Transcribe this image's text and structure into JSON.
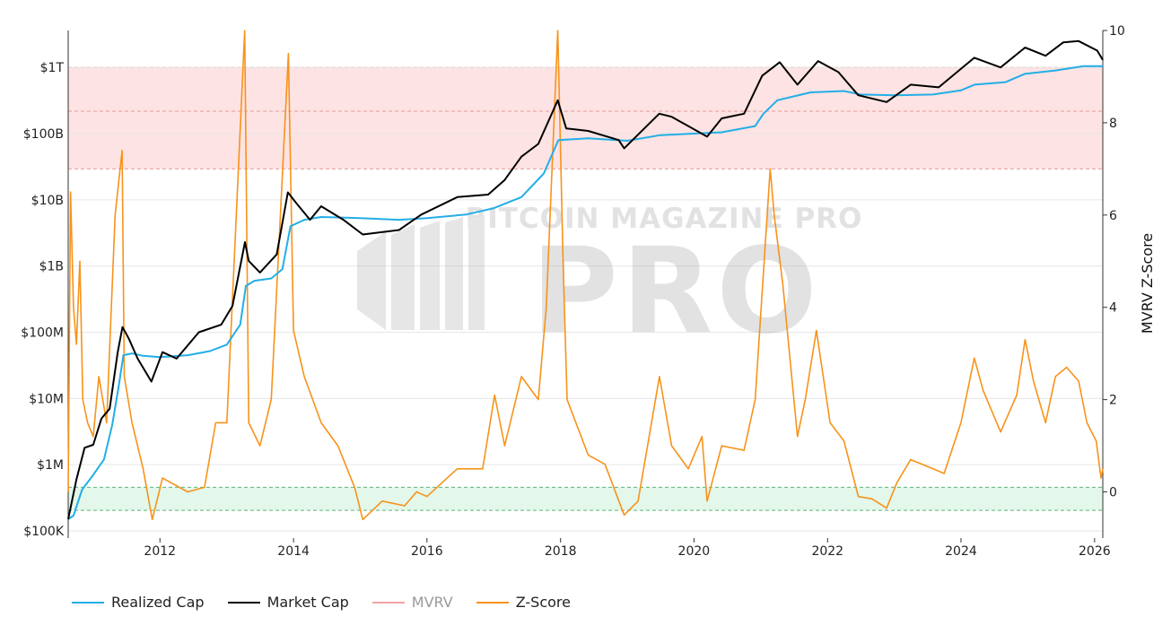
{
  "chart_data": {
    "type": "line",
    "title": "",
    "watermark": "BITCOIN MAGAZINE PRO",
    "x_ticks": [
      "2012",
      "2014",
      "2016",
      "2018",
      "2020",
      "2022",
      "2024",
      "2026"
    ],
    "x_range": [
      "2010-08-17",
      "2026-02-15"
    ],
    "y_left": {
      "scale": "log",
      "range": [
        100000,
        3000000000000
      ],
      "ticks": [
        {
          "value": 100000,
          "label": "$100K"
        },
        {
          "value": 1000000,
          "label": "$1M"
        },
        {
          "value": 10000000,
          "label": "$10M"
        },
        {
          "value": 100000000,
          "label": "$100M"
        },
        {
          "value": 1000000000,
          "label": "$1B"
        },
        {
          "value": 10000000000,
          "label": "$10B"
        },
        {
          "value": 100000000000,
          "label": "$100B"
        },
        {
          "value": 1000000000000,
          "label": "$1T"
        }
      ]
    },
    "y_right": {
      "label": "MVRV Z-Score",
      "range": [
        -1,
        10
      ],
      "ticks": [
        "0",
        "2",
        "4",
        "6",
        "8",
        "10"
      ]
    },
    "bands": [
      {
        "name": "high-zone",
        "from": 7,
        "to": 9.2,
        "color": "#fde3e3",
        "line": "#e79a9a"
      },
      {
        "name": "low-zone",
        "from": -0.4,
        "to": 0.1,
        "color": "#e3f7ea",
        "line": "#5fb37a"
      }
    ],
    "band_midline": 8.25,
    "series": [
      {
        "name": "Realized Cap",
        "axis": "left",
        "color": "#23aee6",
        "points": [
          [
            "2010-08-17",
            150000
          ],
          [
            "2010-09-15",
            170000
          ],
          [
            "2010-11-01",
            420000
          ],
          [
            "2011-01-01",
            700000
          ],
          [
            "2011-03-01",
            1200000
          ],
          [
            "2011-04-15",
            4000000
          ],
          [
            "2011-05-20",
            15000000
          ],
          [
            "2011-06-15",
            45000000
          ],
          [
            "2011-08-01",
            48000000
          ],
          [
            "2011-10-01",
            44000000
          ],
          [
            "2012-01-01",
            42000000
          ],
          [
            "2012-06-01",
            45000000
          ],
          [
            "2012-10-01",
            52000000
          ],
          [
            "2013-01-01",
            65000000
          ],
          [
            "2013-03-15",
            130000000
          ],
          [
            "2013-04-15",
            500000000
          ],
          [
            "2013-06-01",
            600000000
          ],
          [
            "2013-09-01",
            650000000
          ],
          [
            "2013-11-01",
            900000000
          ],
          [
            "2013-12-15",
            4000000000
          ],
          [
            "2014-03-01",
            5000000000
          ],
          [
            "2014-06-01",
            5500000000
          ],
          [
            "2015-01-01",
            5300000000
          ],
          [
            "2015-08-01",
            5000000000
          ],
          [
            "2016-01-01",
            5300000000
          ],
          [
            "2016-08-01",
            6000000000
          ],
          [
            "2017-01-01",
            7500000000
          ],
          [
            "2017-06-01",
            11000000000
          ],
          [
            "2017-10-01",
            25000000000
          ],
          [
            "2017-12-20",
            80000000000
          ],
          [
            "2018-06-01",
            85000000000
          ],
          [
            "2019-01-01",
            78000000000
          ],
          [
            "2019-07-01",
            95000000000
          ],
          [
            "2020-01-01",
            100000000000
          ],
          [
            "2020-06-01",
            105000000000
          ],
          [
            "2020-12-01",
            130000000000
          ],
          [
            "2021-01-15",
            200000000000
          ],
          [
            "2021-04-01",
            320000000000
          ],
          [
            "2021-10-01",
            420000000000
          ],
          [
            "2022-04-01",
            440000000000
          ],
          [
            "2022-07-01",
            390000000000
          ],
          [
            "2023-01-01",
            380000000000
          ],
          [
            "2023-08-01",
            390000000000
          ],
          [
            "2024-01-01",
            450000000000
          ],
          [
            "2024-03-15",
            550000000000
          ],
          [
            "2024-09-01",
            600000000000
          ],
          [
            "2024-12-15",
            800000000000
          ],
          [
            "2025-06-01",
            900000000000
          ],
          [
            "2025-11-01",
            1050000000000
          ],
          [
            "2026-02-15",
            1050000000000
          ]
        ]
      },
      {
        "name": "Market Cap",
        "axis": "left",
        "color": "#000000",
        "points": [
          [
            "2010-08-17",
            150000
          ],
          [
            "2010-10-01",
            600000
          ],
          [
            "2010-11-15",
            1800000
          ],
          [
            "2011-01-01",
            2000000
          ],
          [
            "2011-02-15",
            5000000
          ],
          [
            "2011-04-01",
            7000000
          ],
          [
            "2011-05-15",
            50000000
          ],
          [
            "2011-06-10",
            120000000
          ],
          [
            "2011-07-15",
            80000000
          ],
          [
            "2011-09-01",
            40000000
          ],
          [
            "2011-11-15",
            18000000
          ],
          [
            "2012-01-15",
            50000000
          ],
          [
            "2012-04-01",
            40000000
          ],
          [
            "2012-08-01",
            100000000
          ],
          [
            "2012-12-01",
            130000000
          ],
          [
            "2013-02-01",
            250000000
          ],
          [
            "2013-04-10",
            2300000000
          ],
          [
            "2013-05-01",
            1200000000
          ],
          [
            "2013-07-01",
            800000000
          ],
          [
            "2013-10-01",
            1500000000
          ],
          [
            "2013-12-01",
            13000000000
          ],
          [
            "2014-01-15",
            9000000000
          ],
          [
            "2014-04-01",
            5000000000
          ],
          [
            "2014-06-01",
            8000000000
          ],
          [
            "2014-10-01",
            5000000000
          ],
          [
            "2015-01-15",
            3000000000
          ],
          [
            "2015-08-01",
            3500000000
          ],
          [
            "2015-12-01",
            6000000000
          ],
          [
            "2016-06-15",
            11000000000
          ],
          [
            "2016-12-01",
            12000000000
          ],
          [
            "2017-03-01",
            20000000000
          ],
          [
            "2017-06-01",
            45000000000
          ],
          [
            "2017-09-01",
            70000000000
          ],
          [
            "2017-12-17",
            320000000000
          ],
          [
            "2018-02-01",
            120000000000
          ],
          [
            "2018-06-01",
            110000000000
          ],
          [
            "2018-11-15",
            80000000000
          ],
          [
            "2018-12-15",
            60000000000
          ],
          [
            "2019-06-25",
            200000000000
          ],
          [
            "2019-09-01",
            180000000000
          ],
          [
            "2020-03-13",
            90000000000
          ],
          [
            "2020-06-01",
            170000000000
          ],
          [
            "2020-10-01",
            200000000000
          ],
          [
            "2021-01-08",
            750000000000
          ],
          [
            "2021-04-14",
            1200000000000
          ],
          [
            "2021-07-20",
            550000000000
          ],
          [
            "2021-11-10",
            1250000000000
          ],
          [
            "2022-03-01",
            850000000000
          ],
          [
            "2022-06-18",
            380000000000
          ],
          [
            "2022-11-20",
            300000000000
          ],
          [
            "2023-04-01",
            550000000000
          ],
          [
            "2023-09-01",
            500000000000
          ],
          [
            "2024-03-14",
            1400000000000
          ],
          [
            "2024-08-05",
            1000000000000
          ],
          [
            "2024-12-17",
            2000000000000
          ],
          [
            "2025-04-08",
            1500000000000
          ],
          [
            "2025-07-14",
            2400000000000
          ],
          [
            "2025-10-06",
            2500000000000
          ],
          [
            "2026-01-15",
            1800000000000
          ],
          [
            "2026-02-15",
            1300000000000
          ]
        ]
      },
      {
        "name": "MVRV",
        "axis": "left",
        "color": "#f4a3a8",
        "hidden": true,
        "points": []
      },
      {
        "name": "Z-Score",
        "axis": "right",
        "color": "#f7931a",
        "points": [
          [
            "2010-08-17",
            0
          ],
          [
            "2010-08-30",
            6.5
          ],
          [
            "2010-09-15",
            4
          ],
          [
            "2010-10-01",
            3.2
          ],
          [
            "2010-10-20",
            5
          ],
          [
            "2010-11-05",
            2
          ],
          [
            "2010-12-01",
            1.5
          ],
          [
            "2011-01-01",
            1.2
          ],
          [
            "2011-02-01",
            2.5
          ],
          [
            "2011-03-15",
            1.5
          ],
          [
            "2011-05-01",
            6
          ],
          [
            "2011-06-08",
            7.4
          ],
          [
            "2011-06-20",
            2.5
          ],
          [
            "2011-08-01",
            1.5
          ],
          [
            "2011-10-01",
            0.5
          ],
          [
            "2011-11-20",
            -0.6
          ],
          [
            "2012-01-15",
            0.3
          ],
          [
            "2012-06-01",
            0
          ],
          [
            "2012-09-01",
            0.1
          ],
          [
            "2012-11-01",
            1.5
          ],
          [
            "2013-01-01",
            1.5
          ],
          [
            "2013-04-09",
            10
          ],
          [
            "2013-05-01",
            1.5
          ],
          [
            "2013-07-01",
            1
          ],
          [
            "2013-09-01",
            2
          ],
          [
            "2013-12-04",
            9.5
          ],
          [
            "2014-01-01",
            3.5
          ],
          [
            "2014-03-01",
            2.5
          ],
          [
            "2014-06-01",
            1.5
          ],
          [
            "2014-09-01",
            1
          ],
          [
            "2014-12-01",
            0.1
          ],
          [
            "2015-01-15",
            -0.6
          ],
          [
            "2015-05-01",
            -0.2
          ],
          [
            "2015-09-01",
            -0.3
          ],
          [
            "2015-11-05",
            0
          ],
          [
            "2016-01-01",
            -0.1
          ],
          [
            "2016-06-15",
            0.5
          ],
          [
            "2016-11-01",
            0.5
          ],
          [
            "2017-01-05",
            2.1
          ],
          [
            "2017-03-01",
            1
          ],
          [
            "2017-06-01",
            2.5
          ],
          [
            "2017-09-01",
            2
          ],
          [
            "2017-10-15",
            4
          ],
          [
            "2017-12-17",
            10
          ],
          [
            "2018-01-15",
            5
          ],
          [
            "2018-02-06",
            2
          ],
          [
            "2018-06-01",
            0.8
          ],
          [
            "2018-09-01",
            0.6
          ],
          [
            "2018-12-15",
            -0.5
          ],
          [
            "2019-03-01",
            -0.2
          ],
          [
            "2019-06-26",
            2.5
          ],
          [
            "2019-09-01",
            1
          ],
          [
            "2019-12-01",
            0.5
          ],
          [
            "2020-02-14",
            1.2
          ],
          [
            "2020-03-13",
            -0.2
          ],
          [
            "2020-06-01",
            1
          ],
          [
            "2020-10-01",
            0.9
          ],
          [
            "2020-12-01",
            2
          ],
          [
            "2021-02-21",
            7
          ],
          [
            "2021-03-15",
            6
          ],
          [
            "2021-05-01",
            4.5
          ],
          [
            "2021-07-20",
            1.2
          ],
          [
            "2021-09-01",
            2
          ],
          [
            "2021-11-01",
            3.5
          ],
          [
            "2022-01-15",
            1.5
          ],
          [
            "2022-04-01",
            1.1
          ],
          [
            "2022-06-18",
            -0.1
          ],
          [
            "2022-09-01",
            -0.15
          ],
          [
            "2022-11-20",
            -0.35
          ],
          [
            "2023-01-15",
            0.2
          ],
          [
            "2023-04-01",
            0.7
          ],
          [
            "2023-08-01",
            0.5
          ],
          [
            "2023-10-01",
            0.4
          ],
          [
            "2024-01-01",
            1.5
          ],
          [
            "2024-03-14",
            2.9
          ],
          [
            "2024-05-01",
            2.2
          ],
          [
            "2024-08-05",
            1.3
          ],
          [
            "2024-11-01",
            2.1
          ],
          [
            "2024-12-17",
            3.3
          ],
          [
            "2025-02-01",
            2.4
          ],
          [
            "2025-04-08",
            1.5
          ],
          [
            "2025-06-01",
            2.5
          ],
          [
            "2025-08-01",
            2.7
          ],
          [
            "2025-10-06",
            2.4
          ],
          [
            "2025-11-20",
            1.5
          ],
          [
            "2026-01-10",
            1.1
          ],
          [
            "2026-02-05",
            0.3
          ],
          [
            "2026-02-15",
            0.5
          ]
        ]
      }
    ],
    "legend": [
      {
        "label": "Realized Cap",
        "color": "#23aee6",
        "dimmed": false
      },
      {
        "label": "Market Cap",
        "color": "#000000",
        "dimmed": false
      },
      {
        "label": "MVRV",
        "color": "#f4a3a8",
        "dimmed": true
      },
      {
        "label": "Z-Score",
        "color": "#f7931a",
        "dimmed": false
      }
    ],
    "legend_position": "bottom-left",
    "grid": true
  }
}
